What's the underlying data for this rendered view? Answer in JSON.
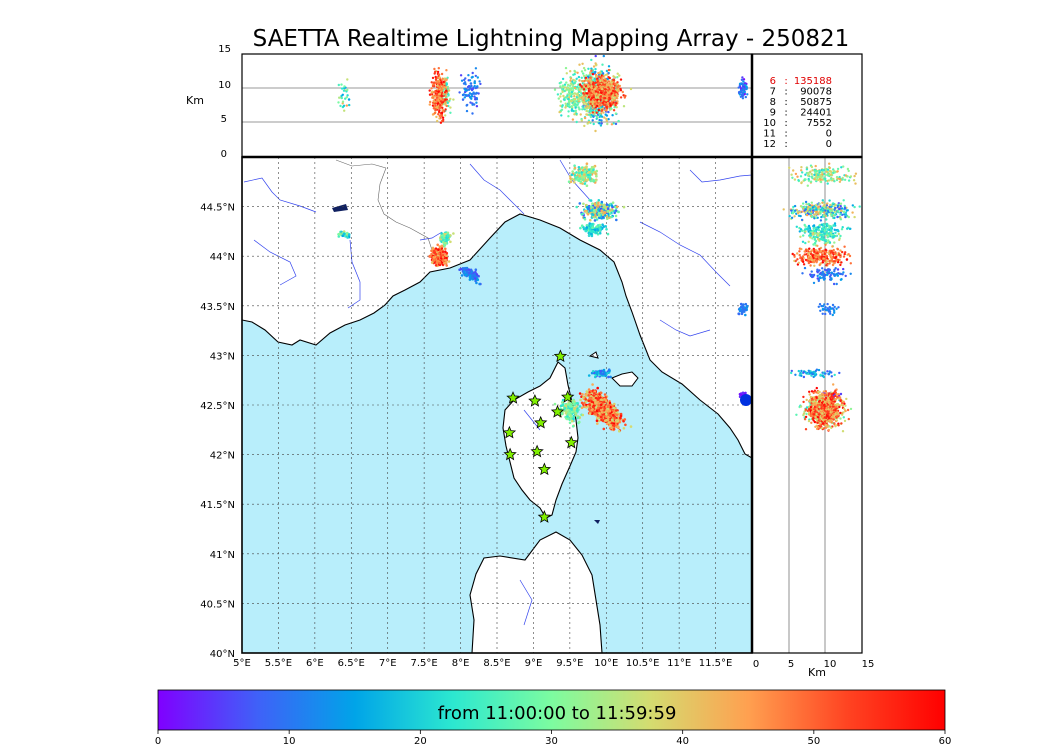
{
  "chart_data": {
    "type": "scatter",
    "title": "SAETTA Realtime Lightning Mapping Array - 250821",
    "altitude_axis": {
      "label": "Km",
      "range": [
        0,
        15
      ],
      "ticks": [
        0,
        5,
        10,
        15
      ],
      "tick_labels": [
        "0",
        "5",
        "10",
        "15"
      ],
      "gridlines": [
        5,
        10
      ]
    },
    "map": {
      "lon_range": [
        5,
        12
      ],
      "lat_range": [
        40,
        45
      ],
      "grid": true,
      "lon_ticks": [
        5,
        5.5,
        6,
        6.5,
        7,
        7.5,
        8,
        8.5,
        9,
        9.5,
        10,
        10.5,
        11,
        11.5
      ],
      "lon_tick_labels": [
        "5°E",
        "5.5°E",
        "6°E",
        "6.5°E",
        "7°E",
        "7.5°E",
        "8°E",
        "8.5°E",
        "9°E",
        "9.5°E",
        "10°E",
        "10.5°E",
        "11°E",
        "11.5°E"
      ],
      "lat_ticks": [
        40,
        40.5,
        41,
        41.5,
        42,
        42.5,
        43,
        43.5,
        44,
        44.5
      ],
      "lat_tick_labels": [
        "40°N",
        "40.5°N",
        "41°N",
        "41.5°N",
        "42°N",
        "42.5°N",
        "43°N",
        "43.5°N",
        "44°N",
        "44.5°N"
      ],
      "sea_color": "#b8eefb",
      "land_color": "#ffffff"
    },
    "stations": [
      {
        "lon": 9.37,
        "lat": 42.99
      },
      {
        "lon": 8.72,
        "lat": 42.57
      },
      {
        "lon": 9.02,
        "lat": 42.54
      },
      {
        "lon": 9.47,
        "lat": 42.58
      },
      {
        "lon": 9.1,
        "lat": 42.32
      },
      {
        "lon": 9.33,
        "lat": 42.43
      },
      {
        "lon": 8.67,
        "lat": 42.22
      },
      {
        "lon": 9.52,
        "lat": 42.12
      },
      {
        "lon": 8.68,
        "lat": 42.0
      },
      {
        "lon": 9.05,
        "lat": 42.03
      },
      {
        "lon": 9.15,
        "lat": 41.85
      },
      {
        "lon": 9.15,
        "lat": 41.37
      }
    ],
    "station_color": "#80f000",
    "detection_counts": [
      {
        "stations": "6",
        "sep": ":",
        "count": "135188",
        "highlight": true
      },
      {
        "stations": "7",
        "sep": ":",
        "count": "90078",
        "highlight": false
      },
      {
        "stations": "8",
        "sep": ":",
        "count": "50875",
        "highlight": false
      },
      {
        "stations": "9",
        "sep": ":",
        "count": "24401",
        "highlight": false
      },
      {
        "stations": "10",
        "sep": ":",
        "count": "7552",
        "highlight": false
      },
      {
        "stations": "11",
        "sep": ":",
        "count": "0",
        "highlight": false
      },
      {
        "stations": "12",
        "sep": ":",
        "count": "0",
        "highlight": false
      }
    ],
    "clusters": [
      {
        "lon": 9.95,
        "lat": 42.46,
        "sx": 0.2,
        "sy": 0.085,
        "alt": 9.5,
        "salt": 1.6,
        "tmin": 36,
        "tmax": 60,
        "n": 700,
        "rot": -0.55
      },
      {
        "lon": 9.5,
        "lat": 42.45,
        "sx": 0.12,
        "sy": 0.08,
        "alt": 9,
        "salt": 2,
        "tmin": 20,
        "tmax": 40,
        "n": 150,
        "rot": -0.4
      },
      {
        "lon": 9.92,
        "lat": 42.82,
        "sx": 0.1,
        "sy": 0.025,
        "alt": 8,
        "salt": 2,
        "tmin": 5,
        "tmax": 25,
        "n": 60,
        "rot": 0
      },
      {
        "lon": 7.7,
        "lat": 44.0,
        "sx": 0.08,
        "sy": 0.06,
        "alt": 9,
        "salt": 2.5,
        "tmin": 40,
        "tmax": 60,
        "n": 260,
        "rot": -0.6
      },
      {
        "lon": 7.8,
        "lat": 44.18,
        "sx": 0.06,
        "sy": 0.05,
        "alt": 9,
        "salt": 2,
        "tmin": 20,
        "tmax": 40,
        "n": 70,
        "rot": 0
      },
      {
        "lon": 8.14,
        "lat": 43.82,
        "sx": 0.09,
        "sy": 0.04,
        "alt": 9.5,
        "salt": 2,
        "tmin": 5,
        "tmax": 15,
        "n": 90,
        "rot": -0.4
      },
      {
        "lon": 9.9,
        "lat": 44.46,
        "sx": 0.17,
        "sy": 0.06,
        "alt": 9,
        "salt": 3,
        "tmin": 5,
        "tmax": 45,
        "n": 300,
        "rot": 0
      },
      {
        "lon": 9.82,
        "lat": 44.27,
        "sx": 0.1,
        "sy": 0.04,
        "alt": 9,
        "salt": 2.5,
        "tmin": 15,
        "tmax": 30,
        "n": 110,
        "rot": 0
      },
      {
        "lon": 9.7,
        "lat": 44.82,
        "sx": 0.12,
        "sy": 0.06,
        "alt": 9,
        "salt": 3,
        "tmin": 20,
        "tmax": 45,
        "n": 170,
        "rot": 0
      },
      {
        "lon": 6.4,
        "lat": 44.22,
        "sx": 0.06,
        "sy": 0.02,
        "alt": 9,
        "salt": 1.5,
        "tmin": 15,
        "tmax": 45,
        "n": 30,
        "rot": 0
      },
      {
        "lon": 11.88,
        "lat": 43.47,
        "sx": 0.04,
        "sy": 0.04,
        "alt": 10,
        "salt": 1,
        "tmin": 8,
        "tmax": 15,
        "n": 35,
        "rot": 0
      },
      {
        "lon": 11.88,
        "lat": 42.6,
        "sx": 0.03,
        "sy": 0.02,
        "alt": 10,
        "salt": 1,
        "tmin": 0,
        "tmax": 5,
        "n": 30,
        "rot": 0
      }
    ],
    "colorbar": {
      "label": "from 11:00:00 to 11:59:59",
      "range": [
        0,
        60
      ],
      "ticks": [
        0,
        10,
        20,
        30,
        40,
        50,
        60
      ],
      "tick_labels": [
        "0",
        "10",
        "20",
        "30",
        "40",
        "50",
        "60"
      ],
      "colors": [
        "#8000ff",
        "#4060f8",
        "#00a4e8",
        "#2ce8d0",
        "#7cfca0",
        "#d4dc70",
        "#ffa050",
        "#ff4422",
        "#ff0000"
      ]
    }
  }
}
